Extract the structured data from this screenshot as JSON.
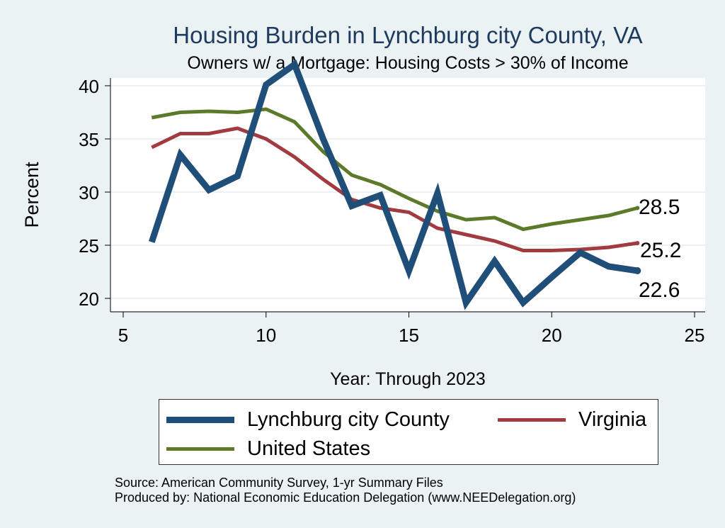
{
  "chart_data": {
    "type": "line",
    "title": "Housing Burden in Lynchburg city County, VA",
    "subtitle": "Owners w/ a Mortgage: Housing Costs > 30% of Income",
    "xlabel": "Year: Through 2023",
    "ylabel": "Percent",
    "xlim": [
      5,
      25
    ],
    "ylim": [
      19.5,
      42.5
    ],
    "xticks": [
      5,
      10,
      15,
      20,
      25
    ],
    "yticks": [
      20,
      25,
      30,
      35,
      40
    ],
    "grid": true,
    "legend_position": "bottom",
    "x": [
      6,
      7,
      8,
      9,
      10,
      11,
      12,
      13,
      14,
      15,
      16,
      17,
      18,
      19,
      20,
      21,
      22,
      23
    ],
    "series": [
      {
        "name": "Lynchburg city County",
        "color": "#1f4e79",
        "values": [
          25.3,
          33.5,
          30.2,
          31.5,
          40.1,
          42.0,
          35.0,
          28.7,
          29.7,
          22.6,
          29.9,
          19.6,
          23.5,
          19.6,
          22.0,
          24.3,
          23.0,
          22.6
        ],
        "end_label": "22.6"
      },
      {
        "name": "Virginia",
        "color": "#a13b3f",
        "values": [
          34.2,
          35.5,
          35.5,
          36.0,
          35.0,
          33.3,
          31.2,
          29.3,
          28.5,
          28.1,
          26.6,
          26.0,
          25.4,
          24.5,
          24.5,
          24.6,
          24.8,
          25.2
        ],
        "end_label": "25.2"
      },
      {
        "name": "United States",
        "color": "#5c7a29",
        "values": [
          37.0,
          37.5,
          37.6,
          37.5,
          37.8,
          36.6,
          33.8,
          31.6,
          30.7,
          29.4,
          28.2,
          27.4,
          27.6,
          26.5,
          27.0,
          27.4,
          27.8,
          28.5
        ],
        "end_label": "28.5"
      }
    ]
  },
  "legend": {
    "lynchburg": "Lynchburg city County",
    "virginia": "Virginia",
    "us": "United States"
  },
  "source": {
    "line1": "Source: American Community Survey, 1-yr Summary Files",
    "line2": "Produced by: National Economic Education Delegation (www.NEEDelegation.org)"
  }
}
